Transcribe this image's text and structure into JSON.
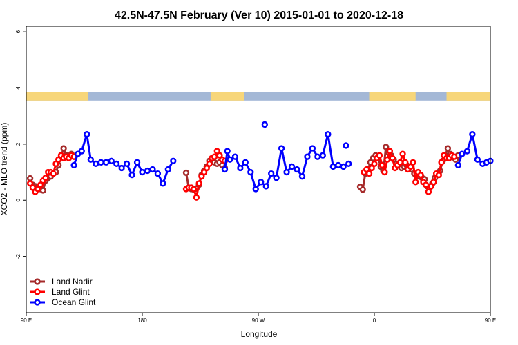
{
  "chart_data": {
    "type": "line",
    "title": "42.5N-47.5N February (Ver 10)   2015-01-01 to 2020-12-18",
    "xlabel": "Longitude",
    "ylabel": "XCO2 - MLO trend (ppm)",
    "xlim": [
      90,
      450
    ],
    "ylim": [
      -4,
      6.2
    ],
    "x_ticks": [
      {
        "value": 90,
        "label": "90 E"
      },
      {
        "value": 180,
        "label": "180"
      },
      {
        "value": 270,
        "label": "90 W"
      },
      {
        "value": 360,
        "label": "0"
      },
      {
        "value": 450,
        "label": "90 E"
      }
    ],
    "y_ticks": [
      {
        "value": -2,
        "label": "-2"
      },
      {
        "value": 0,
        "label": "0"
      },
      {
        "value": 2,
        "label": "2"
      },
      {
        "value": 4,
        "label": "4"
      },
      {
        "value": 6,
        "label": "6"
      }
    ],
    "land_mask": {
      "y_range": [
        3.55,
        3.85
      ],
      "land_color": "#f7d67a",
      "ocean_color": "#a4b8d6",
      "land_segments": [
        [
          90,
          138
        ],
        [
          233,
          259
        ],
        [
          356,
          392
        ],
        [
          416,
          462
        ]
      ]
    },
    "legend_position": "bottom-left",
    "series": [
      {
        "name": "Land Nadir",
        "color": "#a52a2a",
        "segments": [
          [
            [
              93,
              0.78
            ],
            [
              95,
              0.55
            ],
            [
              97,
              0.5
            ],
            [
              99,
              0.48
            ],
            [
              101,
              0.4
            ],
            [
              103,
              0.35
            ],
            [
              105,
              0.7
            ],
            [
              107,
              0.8
            ],
            [
              109,
              0.85
            ],
            [
              111,
              0.95
            ],
            [
              113,
              1.0
            ],
            [
              115,
              1.25
            ],
            [
              117,
              1.55
            ],
            [
              119,
              1.85
            ],
            [
              121,
              1.6
            ],
            [
              123,
              1.55
            ],
            [
              125,
              1.65
            ],
            [
              127,
              1.55
            ]
          ],
          [
            [
              214,
              0.98
            ],
            [
              216,
              0.45
            ],
            [
              218,
              0.4
            ],
            [
              220,
              0.38
            ],
            [
              222,
              0.42
            ],
            [
              224,
              0.55
            ],
            [
              226,
              0.9
            ],
            [
              228,
              1.05
            ],
            [
              230,
              1.2
            ],
            [
              232,
              1.4
            ],
            [
              234,
              1.4
            ],
            [
              236,
              1.35
            ],
            [
              238,
              1.3
            ],
            [
              240,
              1.35
            ],
            [
              242,
              1.25
            ],
            [
              244,
              1.15
            ]
          ],
          [
            [
              349,
              0.48
            ],
            [
              351,
              0.38
            ],
            [
              353,
              0.95
            ],
            [
              355,
              1.1
            ],
            [
              357,
              1.35
            ],
            [
              359,
              1.5
            ],
            [
              361,
              1.6
            ],
            [
              363,
              1.5
            ],
            [
              365,
              1.2
            ],
            [
              367,
              1.05
            ],
            [
              369,
              1.9
            ],
            [
              371,
              1.7
            ],
            [
              373,
              1.6
            ],
            [
              375,
              1.45
            ],
            [
              377,
              1.3
            ],
            [
              379,
              1.25
            ],
            [
              381,
              1.15
            ],
            [
              383,
              1.2
            ],
            [
              385,
              1.25
            ],
            [
              387,
              1.2
            ],
            [
              389,
              1.1
            ],
            [
              391,
              0.95
            ],
            [
              393,
              0.9
            ],
            [
              395,
              0.85
            ],
            [
              397,
              0.8
            ],
            [
              399,
              0.75
            ],
            [
              401,
              0.5
            ],
            [
              403,
              0.45
            ],
            [
              405,
              0.6
            ],
            [
              407,
              0.8
            ],
            [
              409,
              0.95
            ],
            [
              411,
              1.05
            ],
            [
              413,
              1.4
            ],
            [
              415,
              1.6
            ],
            [
              417,
              1.85
            ],
            [
              419,
              1.65
            ],
            [
              421,
              1.55
            ],
            [
              423,
              1.45
            ],
            [
              425,
              1.6
            ]
          ]
        ]
      },
      {
        "name": "Land Glint",
        "color": "#ff0000",
        "segments": [
          [
            [
              93,
              0.6
            ],
            [
              95,
              0.45
            ],
            [
              97,
              0.3
            ],
            [
              99,
              0.4
            ],
            [
              101,
              0.55
            ],
            [
              103,
              0.7
            ],
            [
              105,
              0.8
            ],
            [
              107,
              1.0
            ],
            [
              109,
              1.0
            ],
            [
              111,
              0.95
            ],
            [
              113,
              1.3
            ],
            [
              115,
              1.45
            ],
            [
              117,
              1.6
            ],
            [
              119,
              1.5
            ],
            [
              121,
              1.55
            ],
            [
              123,
              1.5
            ],
            [
              125,
              1.6
            ],
            [
              127,
              1.55
            ]
          ],
          [
            [
              214,
              0.4
            ],
            [
              216,
              0.45
            ],
            [
              218,
              0.45
            ],
            [
              220,
              0.4
            ],
            [
              222,
              0.1
            ],
            [
              224,
              0.6
            ],
            [
              226,
              0.85
            ],
            [
              228,
              1.0
            ],
            [
              230,
              1.15
            ],
            [
              232,
              1.3
            ],
            [
              234,
              1.5
            ],
            [
              236,
              1.55
            ],
            [
              238,
              1.75
            ],
            [
              240,
              1.6
            ],
            [
              242,
              1.45
            ],
            [
              244,
              1.4
            ]
          ],
          [
            [
              352,
              1.0
            ],
            [
              354,
              1.1
            ],
            [
              356,
              0.95
            ],
            [
              358,
              1.15
            ],
            [
              360,
              1.3
            ],
            [
              362,
              1.5
            ],
            [
              364,
              1.6
            ],
            [
              366,
              1.25
            ],
            [
              368,
              1.0
            ],
            [
              370,
              1.45
            ],
            [
              372,
              1.75
            ],
            [
              374,
              1.5
            ],
            [
              376,
              1.15
            ],
            [
              378,
              1.25
            ],
            [
              380,
              1.35
            ],
            [
              382,
              1.65
            ],
            [
              384,
              1.35
            ],
            [
              386,
              1.1
            ],
            [
              388,
              1.2
            ],
            [
              390,
              1.35
            ],
            [
              392,
              0.65
            ],
            [
              394,
              1.0
            ],
            [
              396,
              0.9
            ],
            [
              398,
              0.65
            ],
            [
              400,
              0.55
            ],
            [
              402,
              0.3
            ],
            [
              404,
              0.5
            ],
            [
              406,
              0.65
            ],
            [
              408,
              0.95
            ],
            [
              410,
              0.9
            ],
            [
              412,
              1.35
            ],
            [
              414,
              1.6
            ],
            [
              416,
              1.5
            ],
            [
              418,
              1.5
            ],
            [
              420,
              1.6
            ],
            [
              422,
              1.55
            ]
          ]
        ]
      },
      {
        "name": "Ocean Glint",
        "color": "#0000ff",
        "segments": [
          [
            [
              127,
              1.25
            ],
            [
              130,
              1.65
            ],
            [
              133,
              1.75
            ],
            [
              137,
              2.35
            ],
            [
              140,
              1.45
            ],
            [
              144,
              1.3
            ],
            [
              148,
              1.35
            ],
            [
              152,
              1.35
            ],
            [
              156,
              1.4
            ],
            [
              160,
              1.3
            ],
            [
              164,
              1.15
            ],
            [
              168,
              1.3
            ],
            [
              172,
              0.9
            ],
            [
              176,
              1.35
            ],
            [
              180,
              1.0
            ],
            [
              184,
              1.05
            ],
            [
              188,
              1.1
            ],
            [
              192,
              0.95
            ],
            [
              196,
              0.6
            ],
            [
              200,
              1.1
            ],
            [
              204,
              1.4
            ]
          ],
          [
            [
              244,
              1.1
            ],
            [
              246,
              1.75
            ],
            [
              248,
              1.45
            ],
            [
              252,
              1.55
            ],
            [
              256,
              1.15
            ],
            [
              260,
              1.35
            ],
            [
              264,
              1.0
            ],
            [
              268,
              0.4
            ],
            [
              272,
              0.65
            ],
            [
              276,
              0.5
            ],
            [
              280,
              0.95
            ],
            [
              284,
              0.8
            ],
            [
              288,
              1.85
            ],
            [
              292,
              1.0
            ],
            [
              296,
              1.2
            ],
            [
              300,
              1.1
            ],
            [
              304,
              0.85
            ],
            [
              308,
              1.55
            ],
            [
              312,
              1.85
            ],
            [
              316,
              1.55
            ],
            [
              320,
              1.6
            ],
            [
              324,
              2.35
            ],
            [
              328,
              1.2
            ],
            [
              332,
              1.25
            ],
            [
              336,
              1.2
            ],
            [
              340,
              1.3
            ]
          ],
          [
            [
              425,
              1.25
            ],
            [
              428,
              1.65
            ],
            [
              432,
              1.75
            ],
            [
              436,
              2.35
            ],
            [
              440,
              1.45
            ],
            [
              444,
              1.3
            ],
            [
              447,
              1.35
            ],
            [
              450,
              1.4
            ]
          ]
        ],
        "isolated": [
          [
            275,
            2.7
          ],
          [
            338,
            1.95
          ]
        ]
      }
    ]
  }
}
